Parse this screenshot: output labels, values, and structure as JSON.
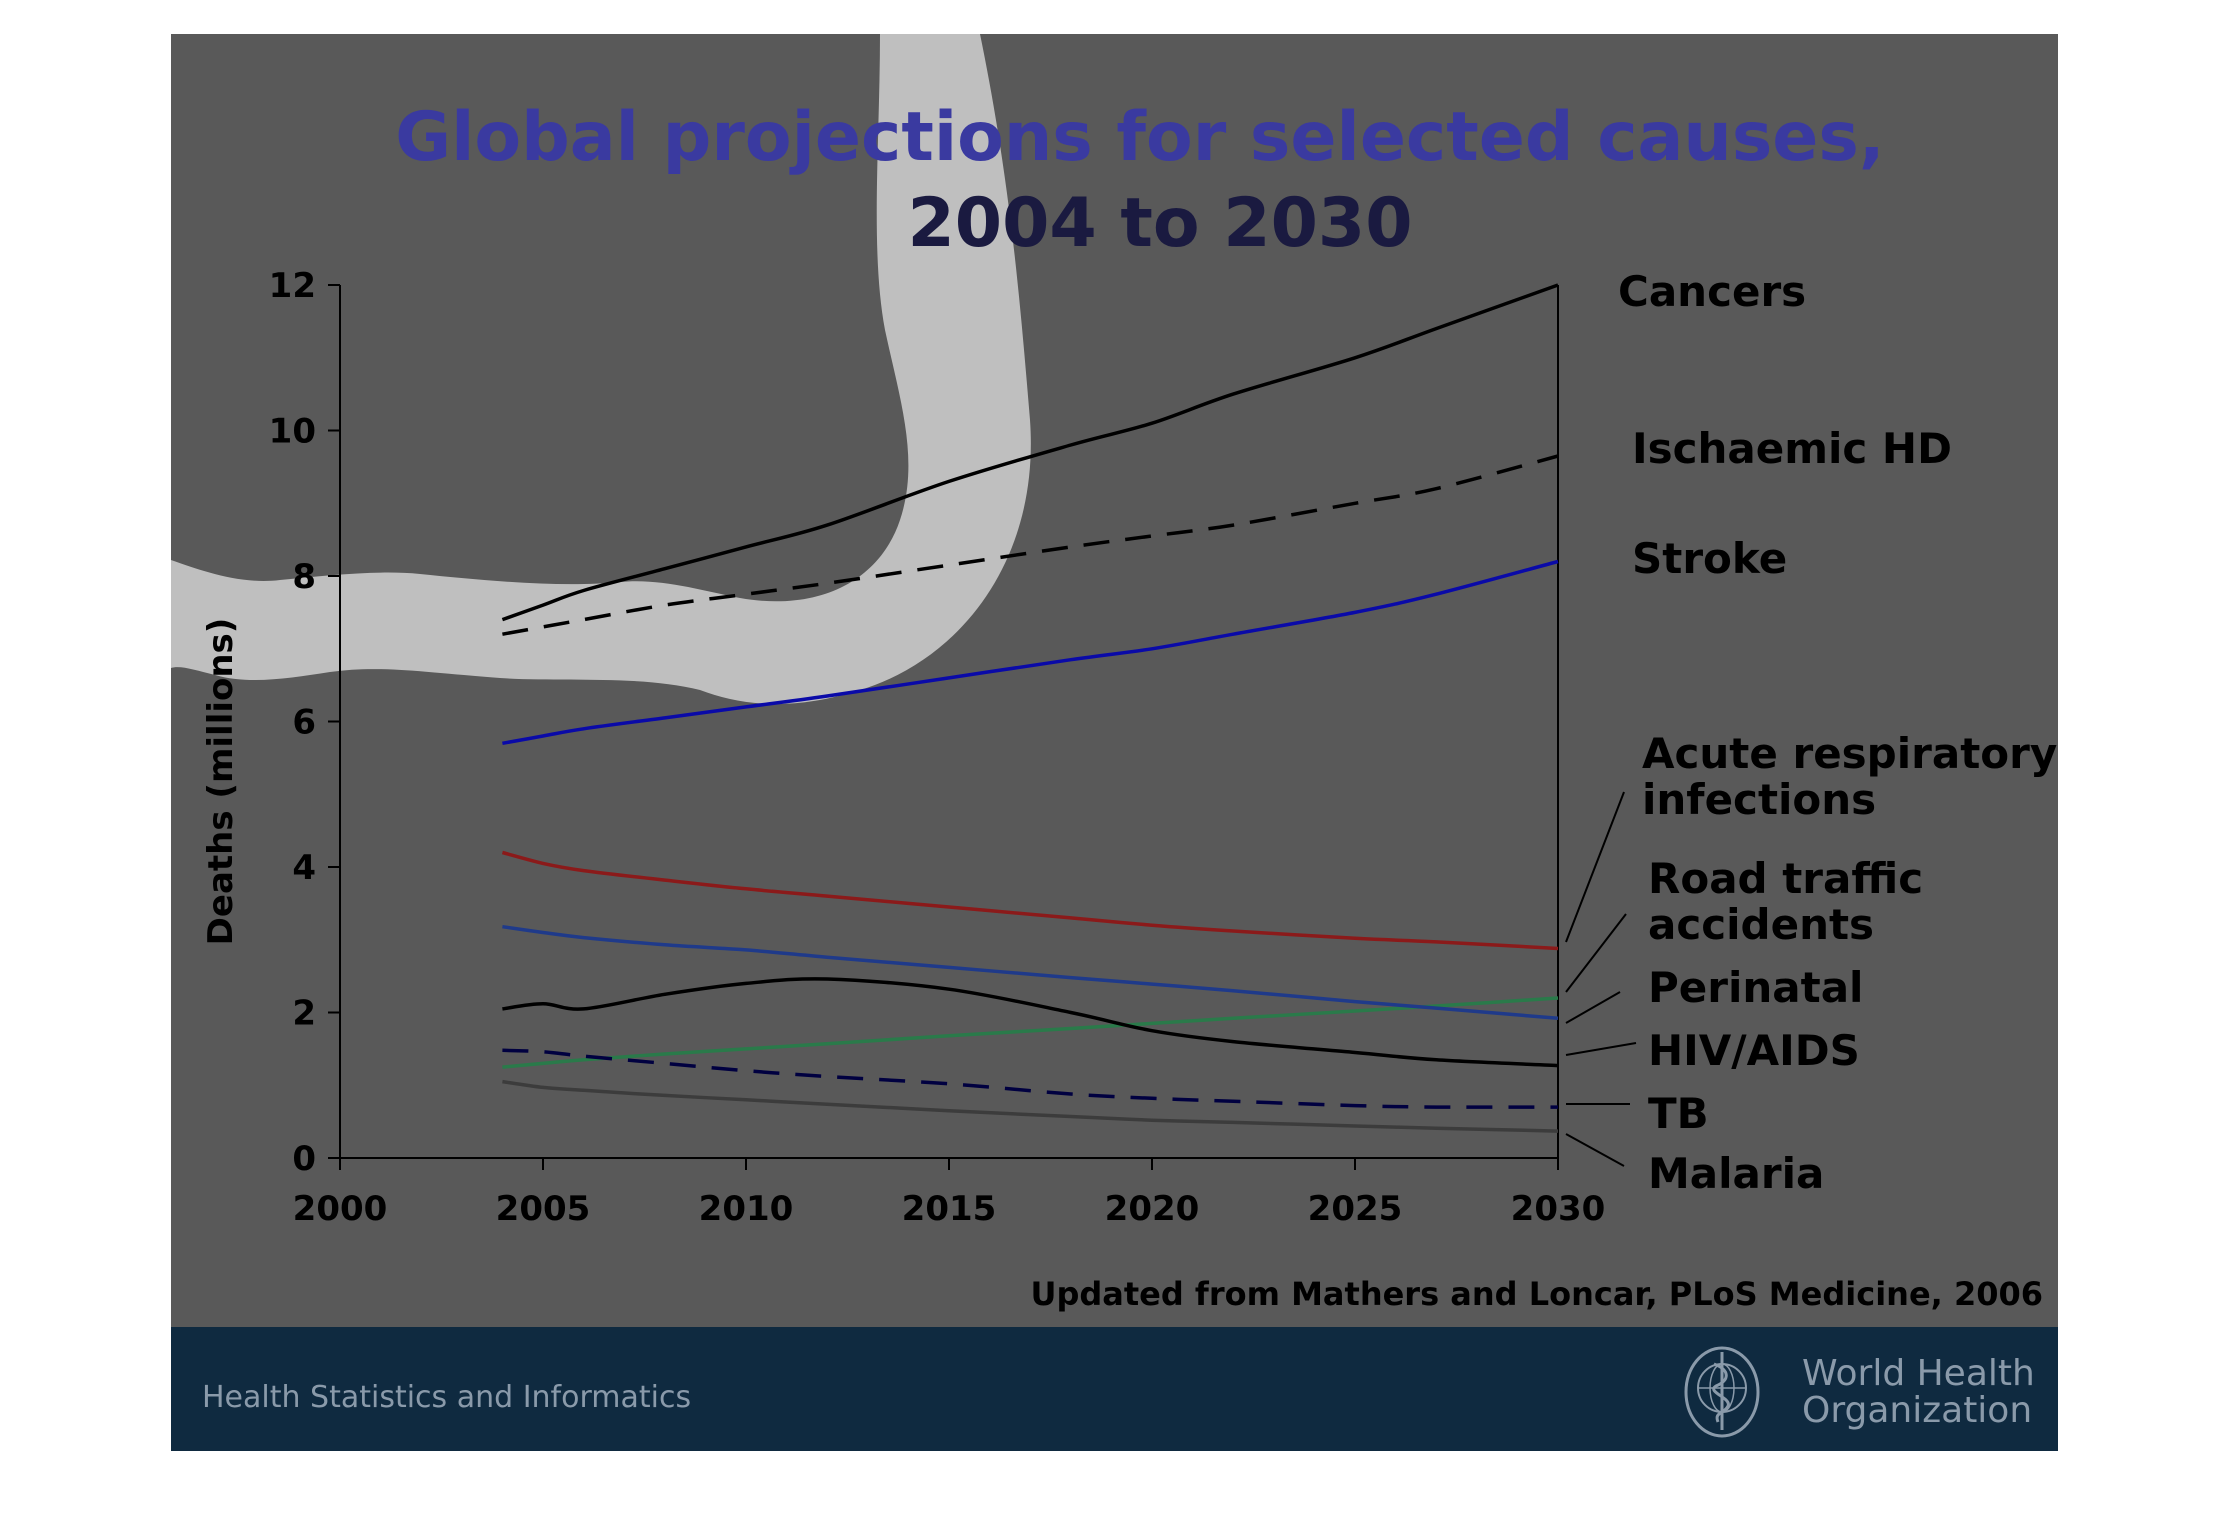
{
  "slide": {
    "title_line1": "Global projections for selected causes,",
    "title_line2": "2004 to 2030",
    "source": "Updated from Mathers and Loncar, PLoS Medicine, 2006",
    "footer_left": "Health Statistics and Informatics",
    "footer_org_line1": "World Health",
    "footer_org_line2": "Organization",
    "colors": {
      "title": "#3a3aa0",
      "background": "#595959",
      "footer_band": "#0f2a40",
      "footer_text": "#8a9aaa"
    }
  },
  "chart_data": {
    "type": "line",
    "title": "Global projections for selected causes, 2004 to 2030",
    "ylabel": "Deaths (millions)",
    "xlabel": "",
    "xlim": [
      2000,
      2030
    ],
    "ylim": [
      0,
      12
    ],
    "x_ticks": [
      "2000",
      "2005",
      "2010",
      "2015",
      "2020",
      "2025",
      "2030"
    ],
    "y_ticks": [
      "0",
      "2",
      "4",
      "6",
      "8",
      "10",
      "12"
    ],
    "grid": false,
    "legend": "right (direct labels)",
    "x": [
      2004,
      2005,
      2006,
      2008,
      2010,
      2012,
      2015,
      2018,
      2020,
      2022,
      2025,
      2027,
      2030
    ],
    "series": [
      {
        "name": "Cancers",
        "color": "#000000",
        "dash": "solid",
        "values": [
          7.4,
          7.6,
          7.8,
          8.1,
          8.4,
          8.7,
          9.3,
          9.8,
          10.1,
          10.5,
          11.0,
          11.4,
          12.0
        ]
      },
      {
        "name": "Ischaemic HD",
        "color": "#000000",
        "dash": "dashed",
        "values": [
          7.2,
          7.3,
          7.4,
          7.6,
          7.75,
          7.9,
          8.15,
          8.4,
          8.55,
          8.7,
          9.0,
          9.2,
          9.65
        ]
      },
      {
        "name": "Stroke",
        "color": "#0a0aa8",
        "dash": "solid",
        "values": [
          5.7,
          5.8,
          5.9,
          6.05,
          6.2,
          6.35,
          6.6,
          6.85,
          7.0,
          7.2,
          7.5,
          7.75,
          8.2
        ]
      },
      {
        "name": "Acute respiratory infections",
        "color": "#8b1a1a",
        "dash": "solid",
        "values": [
          4.2,
          4.05,
          3.95,
          3.82,
          3.7,
          3.6,
          3.45,
          3.3,
          3.2,
          3.12,
          3.02,
          2.97,
          2.88
        ]
      },
      {
        "name": "Road traffic accidents",
        "color": "#2a7a4a",
        "dash": "solid",
        "values": [
          1.25,
          1.3,
          1.35,
          1.43,
          1.5,
          1.57,
          1.68,
          1.78,
          1.85,
          1.92,
          2.02,
          2.09,
          2.2
        ]
      },
      {
        "name": "Perinatal",
        "color": "#1f3a8a",
        "dash": "solid",
        "values": [
          3.18,
          3.1,
          3.03,
          2.93,
          2.86,
          2.76,
          2.62,
          2.48,
          2.39,
          2.3,
          2.15,
          2.06,
          1.92
        ]
      },
      {
        "name": "HIV/AIDS",
        "color": "#000000",
        "dash": "solid",
        "values": [
          2.05,
          2.12,
          2.05,
          2.25,
          2.4,
          2.46,
          2.32,
          2.0,
          1.75,
          1.6,
          1.45,
          1.35,
          1.27
        ]
      },
      {
        "name": "TB",
        "color": "#000040",
        "dash": "dashed",
        "values": [
          1.48,
          1.46,
          1.4,
          1.3,
          1.2,
          1.12,
          1.02,
          0.88,
          0.82,
          0.78,
          0.72,
          0.7,
          0.7
        ]
      },
      {
        "name": "Malaria",
        "color": "#3c3c3c",
        "dash": "solid",
        "values": [
          1.05,
          0.97,
          0.93,
          0.86,
          0.8,
          0.74,
          0.65,
          0.57,
          0.52,
          0.49,
          0.44,
          0.41,
          0.37
        ]
      }
    ],
    "labels": [
      {
        "series": "Cancers",
        "lines": [
          "Cancers"
        ]
      },
      {
        "series": "Ischaemic HD",
        "lines": [
          "Ischaemic HD"
        ]
      },
      {
        "series": "Stroke",
        "lines": [
          "Stroke"
        ]
      },
      {
        "series": "Acute respiratory infections",
        "lines": [
          "Acute respiratory",
          "infections"
        ]
      },
      {
        "series": "Road traffic accidents",
        "lines": [
          "Road traffic",
          "accidents"
        ]
      },
      {
        "series": "Perinatal",
        "lines": [
          "Perinatal"
        ]
      },
      {
        "series": "HIV/AIDS",
        "lines": [
          "HIV/AIDS"
        ]
      },
      {
        "series": "TB",
        "lines": [
          "TB"
        ]
      },
      {
        "series": "Malaria",
        "lines": [
          "Malaria"
        ]
      }
    ]
  }
}
